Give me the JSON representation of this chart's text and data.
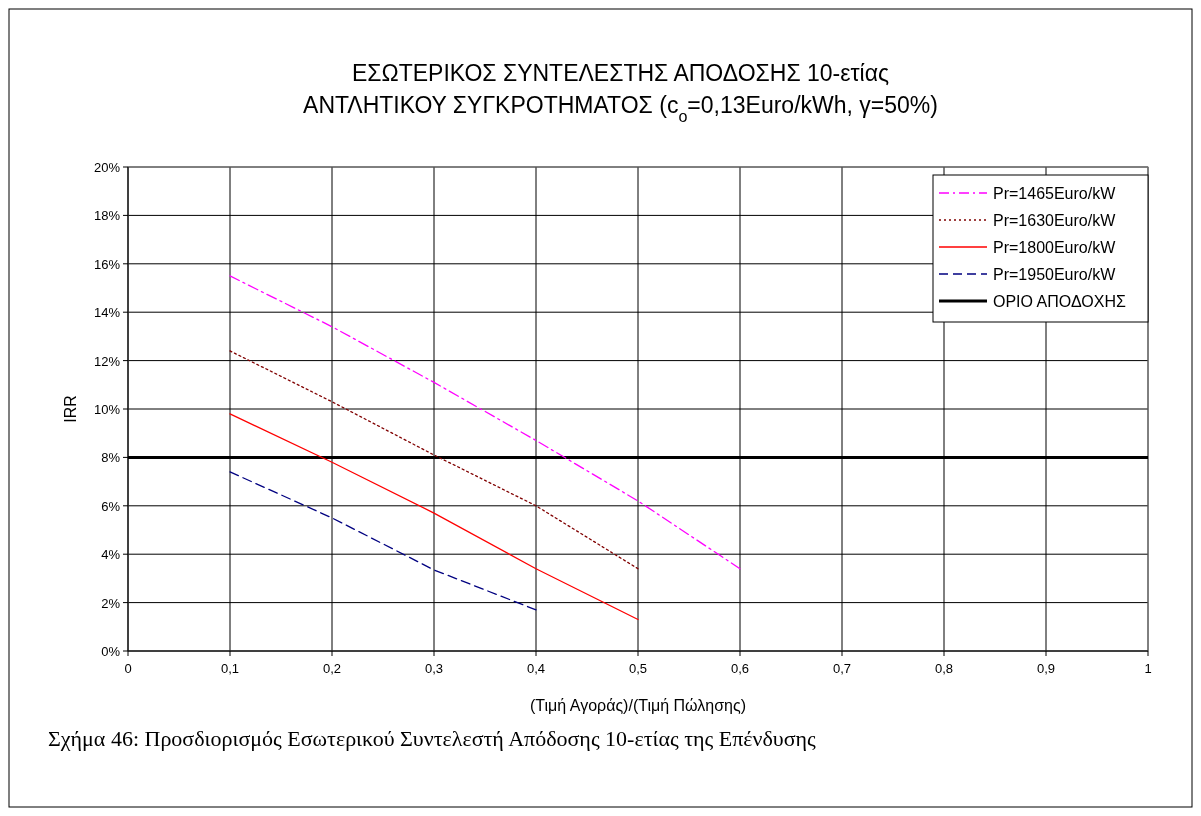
{
  "chart_data": {
    "type": "line",
    "title": "ΕΣΩΤΕΡΙΚΟΣ ΣΥΝΤΕΛΕΣΤΗΣ ΑΠΟΔΟΣΗΣ 10-ετίας\nΑΝΤΛΗΤΙΚΟΥ ΣΥΓΚΡΟΤΗΜΑΤΟΣ (c$_{o}$=0,13Euro/kWh, γ=50%)",
    "xlabel": "(Τιμή Αγοράς)/(Τιμή Πώλησης)",
    "ylabel": "IRR",
    "annotations": [
      "Σχήμα 46: Προσδιορισμός Εσωτερικού Συντελεστή Απόδοσης 10-ετίας της Επένδυσης"
    ],
    "xlim": [
      0,
      1
    ],
    "xticks": [
      {
        "value": 0,
        "label": "0"
      },
      {
        "value": 0.1,
        "label": "0,1"
      },
      {
        "value": 0.2,
        "label": "0,2"
      },
      {
        "value": 0.3,
        "label": "0,3"
      },
      {
        "value": 0.4,
        "label": "0,4"
      },
      {
        "value": 0.5,
        "label": "0,5"
      },
      {
        "value": 0.6,
        "label": "0,6"
      },
      {
        "value": 0.7,
        "label": "0,7"
      },
      {
        "value": 0.8,
        "label": "0,8"
      },
      {
        "value": 0.9,
        "label": "0,9"
      },
      {
        "value": 1,
        "label": "1"
      }
    ],
    "ylim": [
      0,
      20
    ],
    "yticks": [
      {
        "value": 0,
        "label": "0%"
      },
      {
        "value": 2,
        "label": "2%"
      },
      {
        "value": 4,
        "label": "4%"
      },
      {
        "value": 6,
        "label": "6%"
      },
      {
        "value": 8,
        "label": "8%"
      },
      {
        "value": 10,
        "label": "10%"
      },
      {
        "value": 12,
        "label": "12%"
      },
      {
        "value": 14,
        "label": "14%"
      },
      {
        "value": 16,
        "label": "16%"
      },
      {
        "value": 18,
        "label": "18%"
      },
      {
        "value": 20,
        "label": "20%"
      }
    ],
    "grid": true,
    "legend": "top right",
    "marker": "none",
    "series": [
      {
        "name": "Pr=1465Euro/kW",
        "color": "#ff00ff",
        "line_style": "dashdot",
        "x": [
          0.1,
          0.2,
          0.3,
          0.4,
          0.5,
          0.6
        ],
        "values": [
          15.5,
          13.4,
          11.1,
          8.7,
          6.2,
          3.4
        ]
      },
      {
        "name": "Pr=1630Euro/kW",
        "color": "#800000",
        "line_style": "dotted",
        "x": [
          0.1,
          0.2,
          0.3,
          0.4,
          0.5
        ],
        "values": [
          12.4,
          10.3,
          8.1,
          6.0,
          3.4
        ]
      },
      {
        "name": "Pr=1800Euro/kW",
        "color": "#ff0000",
        "line_style": "solid",
        "x": [
          0.1,
          0.2,
          0.3,
          0.4,
          0.5
        ],
        "values": [
          9.8,
          7.8,
          5.7,
          3.4,
          1.3
        ]
      },
      {
        "name": "Pr=1950Euro/kW",
        "color": "#000080",
        "line_style": "dashed",
        "x": [
          0.1,
          0.2,
          0.3,
          0.4
        ],
        "values": [
          7.4,
          5.5,
          3.35,
          1.7
        ]
      }
    ],
    "ref_lines": [
      {
        "axis": "y",
        "value": 8,
        "label": "ΟΡΙΟ ΑΠΟΔΟΧΗΣ",
        "color": "#000000",
        "line_style": "solid"
      }
    ]
  }
}
